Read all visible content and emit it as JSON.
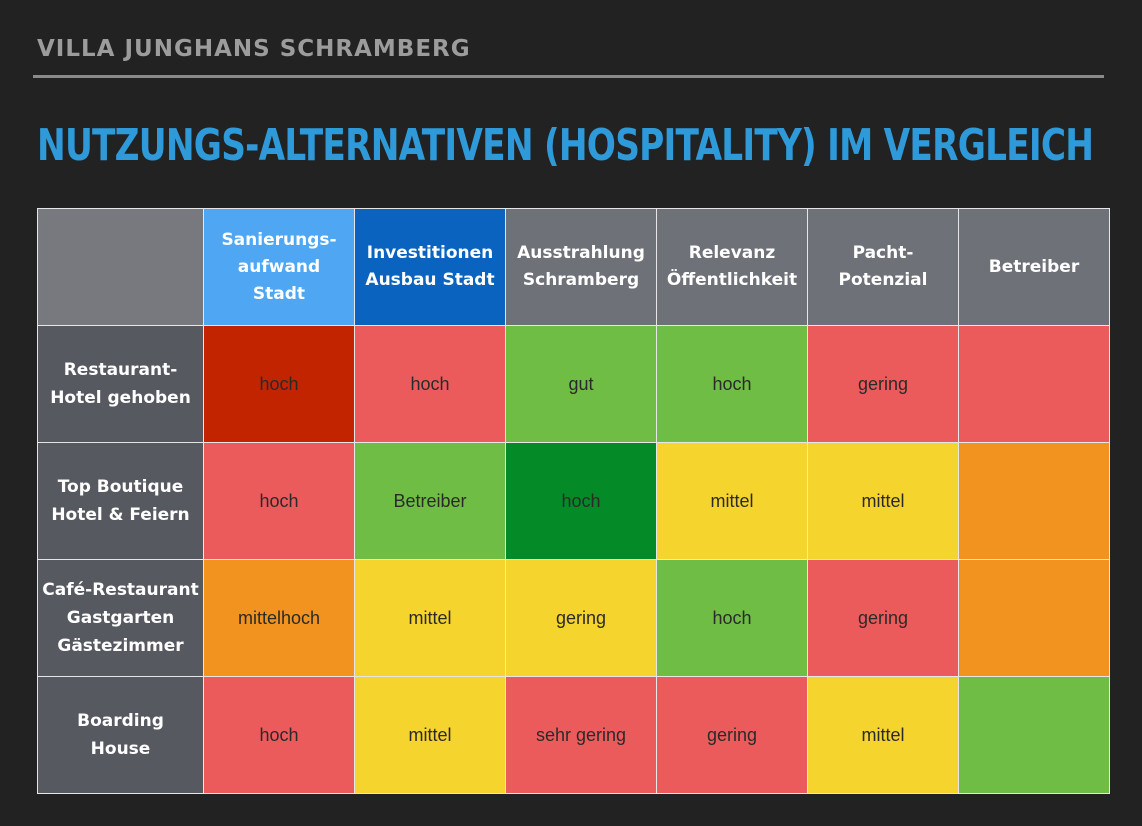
{
  "header": {
    "supertitle": "VILLA JUNGHANS SCHRAMBERG",
    "title": "NUTZUNGS-ALTERNATIVEN (HOSPITALITY) IM VERGLEICH"
  },
  "colors": {
    "title": "#2f9ad9",
    "dark_red": "#c32400",
    "red": "#ec5b5b",
    "green": "#6fbd44",
    "dark_green": "#048a27",
    "yellow": "#f6d42e",
    "orange": "#f2921f"
  },
  "table": {
    "columns": [
      [
        "Sanierungs-",
        "aufwand",
        "Stadt"
      ],
      [
        "Investitionen",
        "Ausbau Stadt"
      ],
      [
        "Ausstrahlung",
        "Schramberg"
      ],
      [
        "Relevanz",
        "Öffentlichkeit"
      ],
      [
        "Pacht-",
        "Potenzial"
      ],
      [
        "Betreiber"
      ]
    ],
    "rows": [
      {
        "label": [
          "Restaurant-",
          "Hotel gehoben"
        ],
        "cells": [
          {
            "text": "hoch",
            "color": "dark_red"
          },
          {
            "text": "hoch",
            "color": "red"
          },
          {
            "text": "gut",
            "color": "green"
          },
          {
            "text": "hoch",
            "color": "green"
          },
          {
            "text": "gering",
            "color": "red"
          },
          {
            "text": "",
            "color": "red"
          }
        ]
      },
      {
        "label": [
          "Top Boutique",
          "Hotel & Feiern"
        ],
        "cells": [
          {
            "text": "hoch",
            "color": "red"
          },
          {
            "text": "Betreiber",
            "color": "green"
          },
          {
            "text": "hoch",
            "color": "dark_green"
          },
          {
            "text": "mittel",
            "color": "yellow"
          },
          {
            "text": "mittel",
            "color": "yellow"
          },
          {
            "text": "",
            "color": "orange"
          }
        ]
      },
      {
        "label": [
          "Café-Restaurant",
          "Gastgarten",
          "Gästezimmer"
        ],
        "cells": [
          {
            "text": "mittelhoch",
            "color": "orange"
          },
          {
            "text": "mittel",
            "color": "yellow"
          },
          {
            "text": "gering",
            "color": "yellow"
          },
          {
            "text": "hoch",
            "color": "green"
          },
          {
            "text": "gering",
            "color": "red"
          },
          {
            "text": "",
            "color": "orange"
          }
        ]
      },
      {
        "label": [
          "Boarding",
          "House"
        ],
        "cells": [
          {
            "text": "hoch",
            "color": "red"
          },
          {
            "text": "mittel",
            "color": "yellow"
          },
          {
            "text": "sehr gering",
            "color": "red"
          },
          {
            "text": "gering",
            "color": "red"
          },
          {
            "text": "mittel",
            "color": "yellow"
          },
          {
            "text": "",
            "color": "green"
          }
        ]
      }
    ]
  }
}
